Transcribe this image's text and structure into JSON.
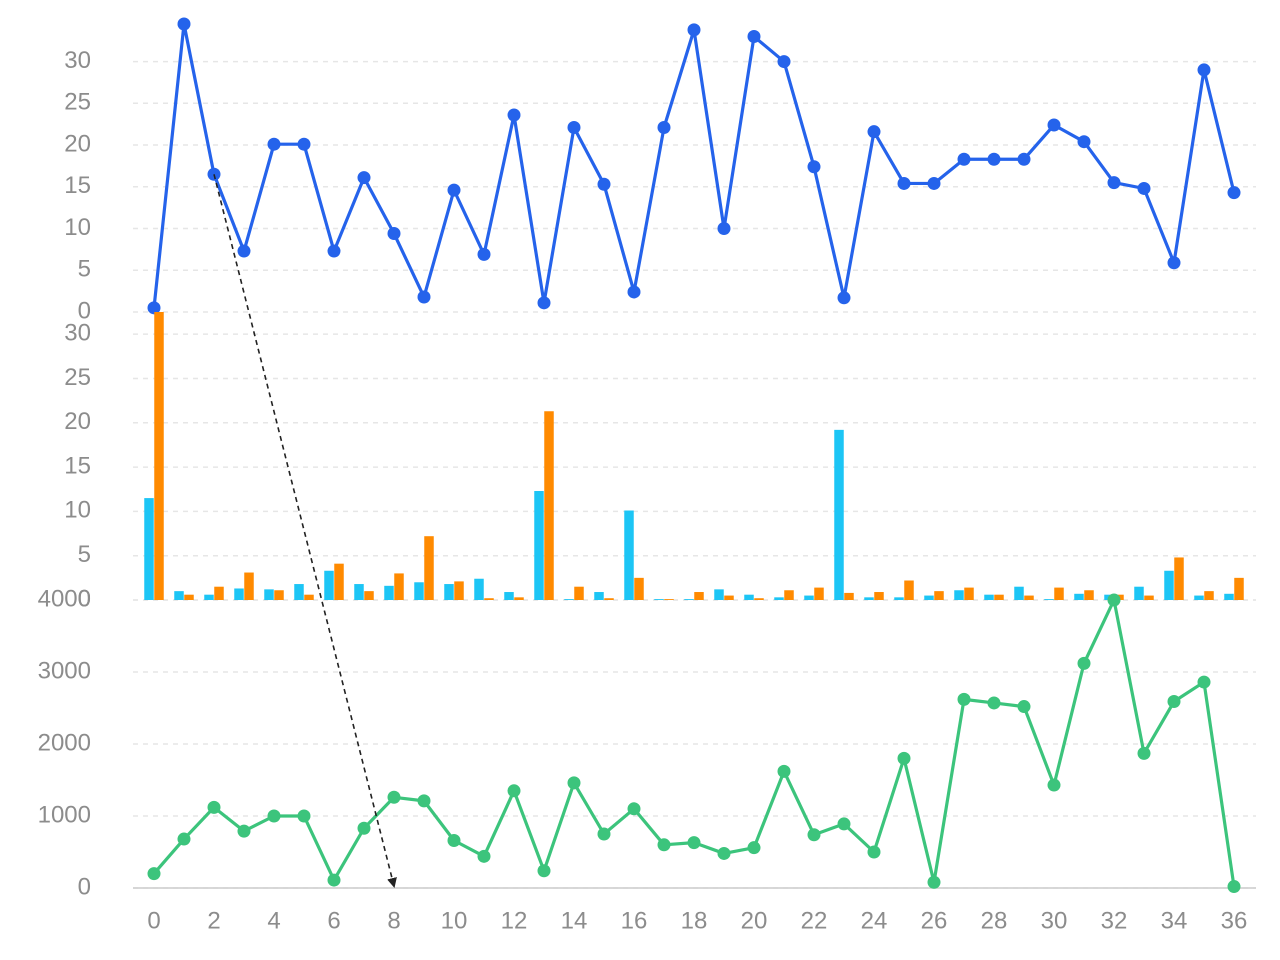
{
  "colors": {
    "blue_line": "#2563eb",
    "bar_series_a": "#1cc5f5",
    "bar_series_b": "#ff8a00",
    "green_line": "#3cc47c",
    "arrow": "#222222"
  },
  "chart_data": [
    {
      "type": "line",
      "x": [
        0,
        1,
        2,
        3,
        4,
        5,
        6,
        7,
        8,
        9,
        10,
        11,
        12,
        13,
        14,
        15,
        16,
        17,
        18,
        19,
        20,
        21,
        22,
        23,
        24,
        25,
        26,
        27,
        28,
        29,
        30,
        31,
        32,
        33,
        34,
        35,
        36
      ],
      "series": [
        {
          "values": [
            0.5,
            34.5,
            16.5,
            7.3,
            20.1,
            20.1,
            7.3,
            16.1,
            9.4,
            1.8,
            14.6,
            6.9,
            23.6,
            1.1,
            22.1,
            15.3,
            2.4,
            22.1,
            33.8,
            10.0,
            33.0,
            30.0,
            17.4,
            1.7,
            21.6,
            15.4,
            15.4,
            18.3,
            18.3,
            18.3,
            22.4,
            20.4,
            15.5,
            14.8,
            5.9,
            29.0,
            14.3
          ]
        }
      ],
      "yticks": [
        0,
        5,
        10,
        15,
        20,
        25,
        30
      ],
      "ylim": [
        0,
        34.5
      ],
      "grid": true
    },
    {
      "type": "bar",
      "categories": [
        0,
        1,
        2,
        3,
        4,
        5,
        6,
        7,
        8,
        9,
        10,
        11,
        12,
        13,
        14,
        15,
        16,
        17,
        18,
        19,
        20,
        21,
        22,
        23,
        24,
        25,
        26,
        27,
        28,
        29,
        30,
        31,
        32,
        33,
        34,
        35,
        36
      ],
      "series": [
        {
          "values": [
            11.5,
            1.0,
            0.6,
            1.3,
            1.2,
            1.8,
            3.3,
            1.8,
            1.6,
            2.0,
            1.8,
            2.4,
            0.9,
            12.3,
            0.1,
            0.9,
            10.1,
            0.1,
            0.1,
            1.2,
            0.6,
            0.3,
            0.5,
            19.2,
            0.3,
            0.3,
            0.5,
            1.1,
            0.6,
            1.5,
            0.1,
            0.7,
            0.6,
            1.5,
            3.3,
            0.5,
            0.7
          ]
        },
        {
          "values": [
            32.5,
            0.6,
            1.5,
            3.1,
            1.1,
            0.6,
            4.1,
            1.0,
            3.0,
            7.2,
            2.1,
            0.2,
            0.3,
            21.3,
            1.5,
            0.2,
            2.5,
            0.1,
            0.9,
            0.5,
            0.2,
            1.1,
            1.4,
            0.8,
            0.9,
            2.2,
            1.0,
            1.4,
            0.6,
            0.5,
            1.4,
            1.1,
            0.6,
            0.5,
            4.8,
            1.0,
            2.5
          ]
        }
      ],
      "yticks": [
        0,
        5,
        10,
        15,
        20,
        25,
        30
      ],
      "ylim": [
        0,
        32.5
      ],
      "grid": true
    },
    {
      "type": "line",
      "x": [
        0,
        1,
        2,
        3,
        4,
        5,
        6,
        7,
        8,
        9,
        10,
        11,
        12,
        13,
        14,
        15,
        16,
        17,
        18,
        19,
        20,
        21,
        22,
        23,
        24,
        25,
        26,
        27,
        28,
        29,
        30,
        31,
        32,
        33,
        34,
        35,
        36
      ],
      "series": [
        {
          "values": [
            200,
            680,
            1120,
            790,
            1000,
            1000,
            110,
            830,
            1260,
            1210,
            660,
            440,
            1350,
            240,
            1460,
            750,
            1100,
            600,
            630,
            480,
            560,
            1620,
            740,
            890,
            500,
            1800,
            80,
            2620,
            2570,
            2520,
            1430,
            3120,
            4000,
            1870,
            2590,
            2860,
            20
          ]
        }
      ],
      "xticks": [
        0,
        2,
        4,
        6,
        8,
        10,
        12,
        14,
        16,
        18,
        20,
        22,
        24,
        26,
        28,
        30,
        32,
        34,
        36
      ],
      "yticks": [
        0,
        1000,
        2000,
        3000,
        4000
      ],
      "ylim": [
        0,
        4000
      ],
      "grid": true
    }
  ],
  "annotation": {
    "type": "arrow",
    "from": {
      "chart": 0,
      "x": 2,
      "y": 16.5
    },
    "to": {
      "chart": 2,
      "x": 8,
      "y": 0
    }
  }
}
